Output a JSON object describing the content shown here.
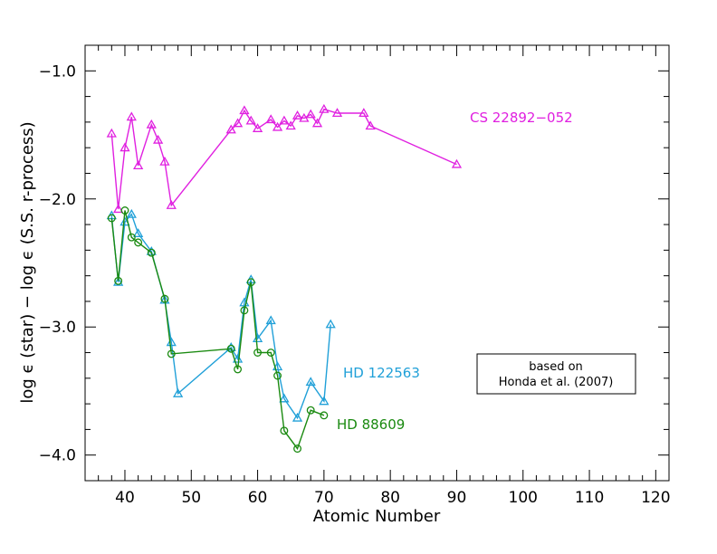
{
  "chart_data": {
    "type": "line",
    "title": "",
    "xlabel": "Atomic Number",
    "ylabel": "log ϵ (star) − log ϵ (S.S. r-process)",
    "xlim": [
      34,
      122
    ],
    "ylim": [
      -4.2,
      -0.8
    ],
    "x_ticks": [
      40,
      50,
      60,
      70,
      80,
      90,
      100,
      110,
      120
    ],
    "x_tick_labels": [
      "40",
      "50",
      "60",
      "70",
      "80",
      "90",
      "100",
      "110",
      "120"
    ],
    "y_ticks": [
      -1.0,
      -2.0,
      -3.0,
      -4.0
    ],
    "y_tick_labels": [
      "−1.0",
      "−2.0",
      "−3.0",
      "−4.0"
    ],
    "annotation": {
      "line1": "based on",
      "line2": "Honda et al. (2007)"
    },
    "series": [
      {
        "name": "CS 22892−052",
        "color": "#e020e0",
        "marker": "triangle",
        "points": [
          [
            38,
            -1.49
          ],
          [
            39,
            -2.08
          ],
          [
            40,
            -1.6
          ],
          [
            41,
            -1.36
          ],
          [
            42,
            -1.74
          ],
          [
            44,
            -1.42
          ],
          [
            45,
            -1.54
          ],
          [
            46,
            -1.71
          ],
          [
            47,
            -2.05
          ],
          [
            56,
            -1.46
          ],
          [
            57,
            -1.41
          ],
          [
            58,
            -1.31
          ],
          [
            59,
            -1.39
          ],
          [
            60,
            -1.45
          ],
          [
            62,
            -1.38
          ],
          [
            63,
            -1.44
          ],
          [
            64,
            -1.39
          ],
          [
            65,
            -1.43
          ],
          [
            66,
            -1.35
          ],
          [
            67,
            -1.37
          ],
          [
            68,
            -1.34
          ],
          [
            69,
            -1.41
          ],
          [
            70,
            -1.3
          ],
          [
            72,
            -1.33
          ],
          [
            76,
            -1.33
          ],
          [
            77,
            -1.43
          ],
          [
            90,
            -1.73
          ]
        ]
      },
      {
        "name": "HD 122563",
        "color": "#20a0d8",
        "marker": "triangle",
        "points": [
          [
            38,
            -2.13
          ],
          [
            39,
            -2.65
          ],
          [
            40,
            -2.18
          ],
          [
            41,
            -2.12
          ],
          [
            42,
            -2.27
          ],
          [
            44,
            -2.41
          ],
          [
            46,
            -2.79
          ],
          [
            47,
            -3.12
          ],
          [
            48,
            -3.52
          ],
          [
            56,
            -3.16
          ],
          [
            57,
            -3.25
          ],
          [
            58,
            -2.81
          ],
          [
            59,
            -2.63
          ],
          [
            60,
            -3.09
          ],
          [
            62,
            -2.95
          ],
          [
            63,
            -3.31
          ],
          [
            64,
            -3.56
          ],
          [
            66,
            -3.71
          ],
          [
            68,
            -3.43
          ],
          [
            70,
            -3.58
          ],
          [
            71,
            -2.98
          ]
        ]
      },
      {
        "name": "HD 88609",
        "color": "#1a8a10",
        "marker": "circle",
        "points": [
          [
            38,
            -2.15
          ],
          [
            39,
            -2.64
          ],
          [
            40,
            -2.09
          ],
          [
            41,
            -2.3
          ],
          [
            42,
            -2.34
          ],
          [
            44,
            -2.42
          ],
          [
            46,
            -2.78
          ],
          [
            47,
            -3.21
          ],
          [
            56,
            -3.17
          ],
          [
            57,
            -3.33
          ],
          [
            58,
            -2.87
          ],
          [
            59,
            -2.65
          ],
          [
            60,
            -3.2
          ],
          [
            62,
            -3.2
          ],
          [
            63,
            -3.38
          ],
          [
            64,
            -3.81
          ],
          [
            66,
            -3.95
          ],
          [
            68,
            -3.65
          ],
          [
            70,
            -3.69
          ]
        ]
      }
    ]
  }
}
